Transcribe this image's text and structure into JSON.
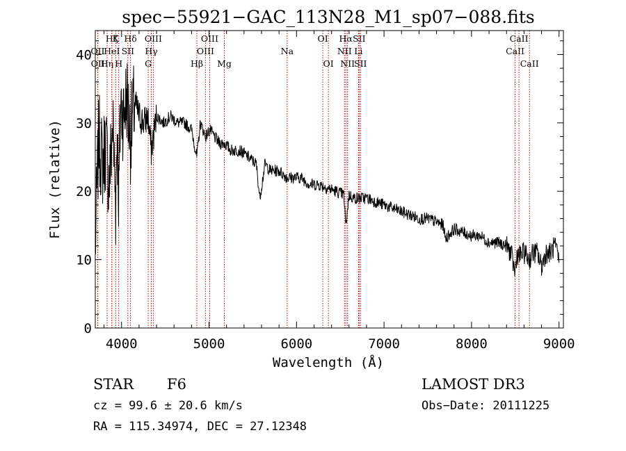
{
  "chart_data": {
    "type": "line",
    "title": "spec−55921−GAC_113N28_M1_sp07−088.fits",
    "xlabel": "Wavelength (Å)",
    "ylabel": "Flux (relative)",
    "xlim": [
      3700,
      9050
    ],
    "ylim": [
      0,
      43.5
    ],
    "x_ticks": [
      4000,
      5000,
      6000,
      7000,
      8000,
      9000
    ],
    "y_ticks": [
      0,
      10,
      20,
      30,
      40
    ],
    "line_color": "#000000",
    "marker_color": "#c00000",
    "series": [
      {
        "name": "flux",
        "x": [
          3700,
          3740,
          3780,
          3820,
          3860,
          3900,
          3933,
          3950,
          3968,
          3990,
          4020,
          4060,
          4102,
          4150,
          4200,
          4260,
          4300,
          4340,
          4400,
          4480,
          4560,
          4640,
          4720,
          4800,
          4861,
          4900,
          4960,
          5010,
          5060,
          5120,
          5175,
          5250,
          5350,
          5450,
          5540,
          5580,
          5640,
          5700,
          5800,
          5890,
          5950,
          6050,
          6150,
          6250,
          6350,
          6450,
          6540,
          6563,
          6600,
          6650,
          6720,
          6800,
          6900,
          7000,
          7100,
          7200,
          7300,
          7400,
          7500,
          7600,
          7680,
          7700,
          7800,
          7900,
          8000,
          8100,
          8200,
          8300,
          8400,
          8450,
          8498,
          8520,
          8542,
          8600,
          8662,
          8700,
          8750,
          8800,
          8850,
          8900,
          8950,
          9000
        ],
        "y": [
          12,
          28,
          24,
          27,
          21,
          30,
          18,
          29,
          19,
          33,
          31,
          34,
          28,
          33,
          31,
          30,
          31,
          26,
          31,
          30,
          31,
          30,
          30,
          29,
          25,
          30,
          28,
          29,
          28,
          27,
          27,
          26,
          26,
          25,
          24,
          19,
          24,
          23,
          23,
          22,
          22,
          22,
          21,
          21,
          20.5,
          20,
          19.5,
          15,
          19.5,
          19,
          19,
          19,
          18.5,
          18,
          17.5,
          17,
          16.5,
          16,
          16,
          15.5,
          15,
          13,
          14.5,
          14,
          13.5,
          13.5,
          12.5,
          12.5,
          12,
          11,
          8,
          11,
          10.5,
          11,
          10,
          11,
          11,
          9,
          11,
          11,
          12,
          10
        ]
      }
    ],
    "line_markers": [
      {
        "name": "Ca II H",
        "label": "H",
        "x": 3968,
        "row": 2
      },
      {
        "name": "Ca II K",
        "label": "K",
        "x": 3933,
        "row": 0
      },
      {
        "name": "H-delta",
        "label": "Hδ",
        "x": 4102,
        "row": 0
      },
      {
        "name": "H-gamma",
        "label": "Hγ",
        "x": 4340,
        "row": 1
      },
      {
        "name": "H-beta",
        "label": "Hβ",
        "x": 4861,
        "row": 2
      },
      {
        "name": "O III 4959",
        "label": "OIII",
        "x": 4959,
        "row": 1
      },
      {
        "name": "O III 5007",
        "label": "OIII",
        "x": 5007,
        "row": 0
      },
      {
        "name": "Mg",
        "label": "Mg",
        "x": 5175,
        "row": 2
      },
      {
        "name": "Na",
        "label": "Na",
        "x": 5893,
        "row": 1
      },
      {
        "name": "O I 6300",
        "label": "OI",
        "x": 6300,
        "row": 0
      },
      {
        "name": "O I 6364",
        "label": "OI",
        "x": 6364,
        "row": 2
      },
      {
        "name": "N II 6548",
        "label": "NII",
        "x": 6548,
        "row": 1
      },
      {
        "name": "H-alpha",
        "label": "Hα",
        "x": 6563,
        "row": 0
      },
      {
        "name": "N II 6583",
        "label": "NII",
        "x": 6583,
        "row": 2
      },
      {
        "name": "Li",
        "label": "Li",
        "x": 6708,
        "row": 1
      },
      {
        "name": "S II 6716",
        "label": "SII",
        "x": 6716,
        "row": 0
      },
      {
        "name": "S II 6731",
        "label": "SII",
        "x": 6731,
        "row": 2
      },
      {
        "name": "Ca II 8498",
        "label": "CaII",
        "x": 8498,
        "row": 1
      },
      {
        "name": "Ca II 8542",
        "label": "CaII",
        "x": 8542,
        "row": 0
      },
      {
        "name": "Ca II 8662",
        "label": "CaII",
        "x": 8662,
        "row": 2
      },
      {
        "name": "O II",
        "label": "OII",
        "x": 3727,
        "row": 1
      },
      {
        "name": "H-eta",
        "label": "Hη",
        "x": 3835,
        "row": 2
      },
      {
        "name": "H-zeta",
        "label": "Hζ",
        "x": 3889,
        "row": 0
      },
      {
        "name": "He I",
        "label": "HeI",
        "x": 3889,
        "row": 1
      },
      {
        "name": "S II 4072",
        "label": "SII",
        "x": 4072,
        "row": 1
      },
      {
        "name": "G band",
        "label": "G",
        "x": 4305,
        "row": 2
      },
      {
        "name": "O III 4363",
        "label": "OIII",
        "x": 4363,
        "row": 0
      },
      {
        "name": "O I 3727 blend",
        "label": "OII",
        "x": 3729,
        "row": 2
      }
    ]
  },
  "footer": {
    "class_label": "STAR",
    "subclass": "F6",
    "survey": "LAMOST DR3",
    "cz": "cz = 99.6 ± 20.6 km/s",
    "obs_date": "Obs−Date: 20111225",
    "coords": "RA = 115.34974, DEC =  27.12348"
  }
}
